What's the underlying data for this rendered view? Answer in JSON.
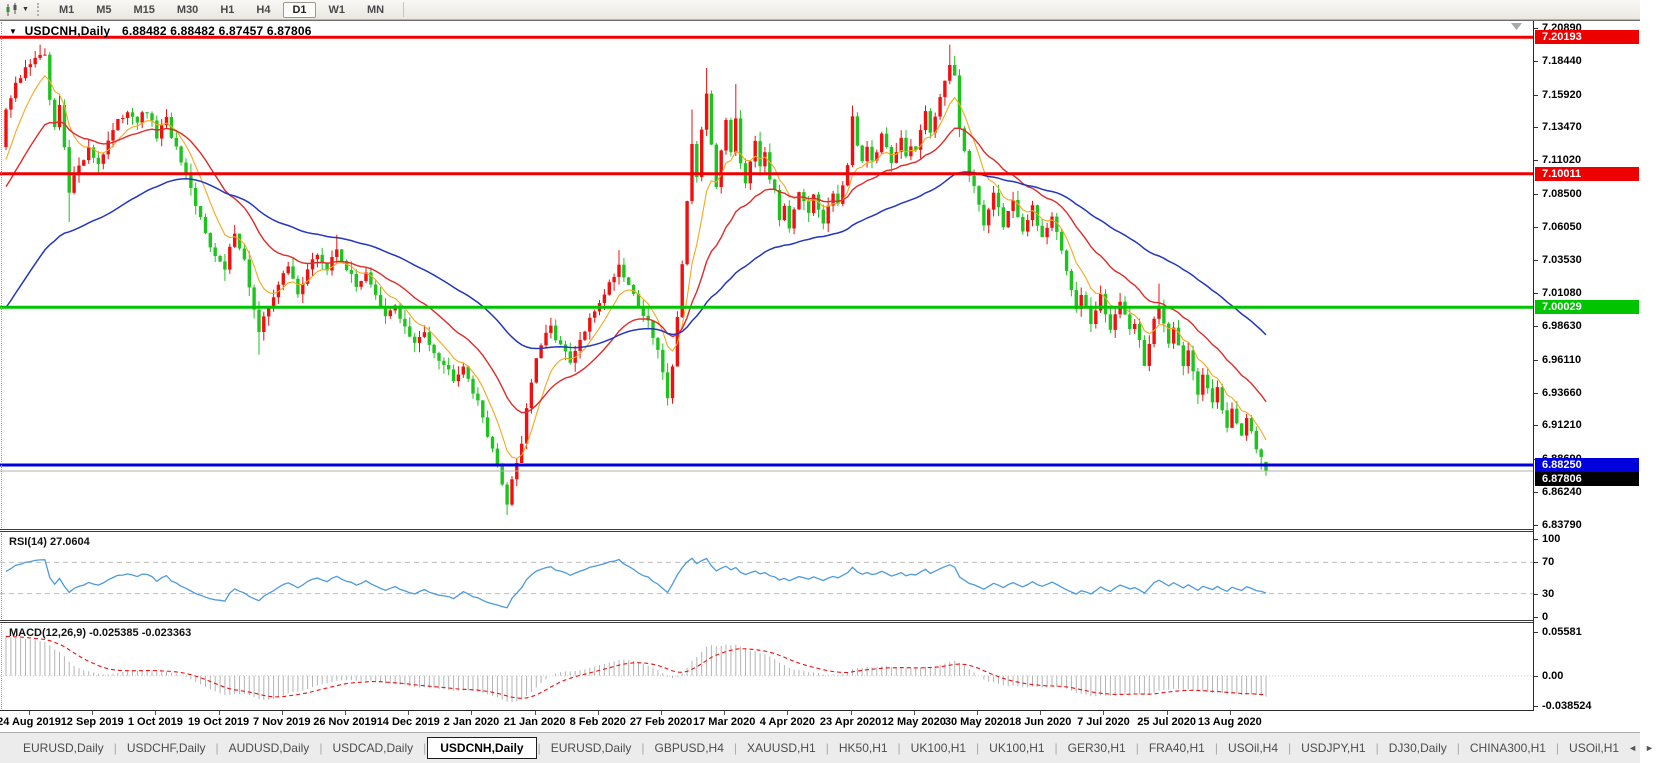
{
  "toolbar": {
    "chart_icon": "candlestick-chart-icon",
    "dropdown_icon": "chevron-down-icon",
    "timeframes": [
      "M1",
      "M5",
      "M15",
      "M30",
      "H1",
      "H4",
      "D1",
      "W1",
      "MN"
    ],
    "active_timeframe": "D1"
  },
  "legend": {
    "collapse_icon": "▼",
    "symbol": "USDCNH,Daily",
    "ohlc": "6.88482 6.88482 6.87457 6.87806"
  },
  "rsi_panel": {
    "label": "RSI(14)",
    "value": "27.0604"
  },
  "macd_panel": {
    "label": "MACD(12,26,9)",
    "value": "-0.025385 -0.023363"
  },
  "axes": {
    "price_labels": [
      "7.20890",
      "7.18440",
      "7.15920",
      "7.13470",
      "7.11020",
      "7.08500",
      "7.06050",
      "7.03530",
      "7.01080",
      "6.98630",
      "6.96110",
      "6.93660",
      "6.91210",
      "6.88690",
      "6.86240",
      "6.83790"
    ],
    "rsi_labels": [
      "100",
      "70",
      "30",
      "0"
    ],
    "macd_labels": [
      "0.05581",
      "0.00",
      "-0.038524"
    ],
    "dates": [
      "24 Aug 2019",
      "12 Sep 2019",
      "1 Oct 2019",
      "19 Oct 2019",
      "7 Nov 2019",
      "26 Nov 2019",
      "14 Dec 2019",
      "2 Jan 2020",
      "21 Jan 2020",
      "8 Feb 2020",
      "27 Feb 2020",
      "17 Mar 2020",
      "4 Apr 2020",
      "23 Apr 2020",
      "12 May 2020",
      "30 May 2020",
      "18 Jun 2020",
      "7 Jul 2020",
      "25 Jul 2020",
      "13 Aug 2020"
    ]
  },
  "price_tags": [
    {
      "label": "7.20193",
      "price": 7.20193,
      "bg": "#ee0000",
      "fg": "#ffffff"
    },
    {
      "label": "7.10011",
      "price": 7.10011,
      "bg": "#ee0000",
      "fg": "#ffffff"
    },
    {
      "label": "7.00029",
      "price": 7.00029,
      "bg": "#00c400",
      "fg": "#ffffff"
    },
    {
      "label": "6.88250",
      "price": 6.8825,
      "bg": "#0000dd",
      "fg": "#ffffff"
    },
    {
      "label": "6.87806",
      "price": 6.87806,
      "bg": "#000000",
      "fg": "#ffffff"
    }
  ],
  "tabs": {
    "items": [
      {
        "label": "EURUSD,Daily",
        "active": false
      },
      {
        "label": "USDCHF,Daily",
        "active": false
      },
      {
        "label": "AUDUSD,Daily",
        "active": false
      },
      {
        "label": "USDCAD,Daily",
        "active": false
      },
      {
        "label": "USDCNH,Daily",
        "active": true
      },
      {
        "label": "EURUSD,Daily",
        "active": false
      },
      {
        "label": "GBPUSD,H4",
        "active": false
      },
      {
        "label": "XAUUSD,H1",
        "active": false
      },
      {
        "label": "HK50,H1",
        "active": false
      },
      {
        "label": "UK100,H1",
        "active": false
      },
      {
        "label": "UK100,H1",
        "active": false
      },
      {
        "label": "GER30,H1",
        "active": false
      },
      {
        "label": "FRA40,H1",
        "active": false
      },
      {
        "label": "USOil,H4",
        "active": false
      },
      {
        "label": "USDJPY,H1",
        "active": false
      },
      {
        "label": "DJ30,Daily",
        "active": false
      },
      {
        "label": "CHINA300,H1",
        "active": false
      },
      {
        "label": "USOil,H1",
        "active": false
      }
    ],
    "scroll_left_icon": "◄",
    "scroll_right_icon": "►"
  },
  "colors": {
    "bull_candle": "#f01010",
    "bear_candle": "#1ec41e",
    "bull_stroke": "#cc0000",
    "bear_stroke": "#0da00d",
    "ma_fast": "#f5a81f",
    "ma_mid": "#e02b2b",
    "ma_slow": "#2336c0",
    "rsi_line": "#4e9ade",
    "macd_hist": "#b4b4b4",
    "macd_signal": "#ee1111",
    "level_dash": "#bdbdbd",
    "current_price_line": "#b0b0b0"
  },
  "chart_data": {
    "type": "candlestick",
    "symbol": "USDCNH",
    "timeframe": "Daily",
    "ohlc_display": {
      "open": "6.88482",
      "high": "6.88482",
      "low": "6.87457",
      "close": "6.87806"
    },
    "price_axis_range": [
      6.8379,
      7.2089
    ],
    "candle_count": 260,
    "first_open": 7.12,
    "seed": 987654321,
    "wiggle": 0.006,
    "wick": 0.007,
    "close_anchors": [
      [
        0,
        7.148
      ],
      [
        2,
        7.165
      ],
      [
        4,
        7.178
      ],
      [
        6,
        7.188
      ],
      [
        8,
        7.186
      ],
      [
        9,
        7.155
      ],
      [
        10,
        7.132
      ],
      [
        11,
        7.15
      ],
      [
        12,
        7.118
      ],
      [
        13,
        7.085
      ],
      [
        15,
        7.108
      ],
      [
        17,
        7.118
      ],
      [
        19,
        7.108
      ],
      [
        21,
        7.125
      ],
      [
        23,
        7.138
      ],
      [
        25,
        7.148
      ],
      [
        27,
        7.14
      ],
      [
        29,
        7.146
      ],
      [
        31,
        7.128
      ],
      [
        33,
        7.14
      ],
      [
        35,
        7.118
      ],
      [
        37,
        7.098
      ],
      [
        39,
        7.075
      ],
      [
        41,
        7.058
      ],
      [
        43,
        7.038
      ],
      [
        45,
        7.028
      ],
      [
        47,
        7.058
      ],
      [
        49,
        7.035
      ],
      [
        51,
        6.998
      ],
      [
        52,
        6.98
      ],
      [
        54,
        7.002
      ],
      [
        56,
        7.018
      ],
      [
        58,
        7.03
      ],
      [
        60,
        7.012
      ],
      [
        62,
        7.028
      ],
      [
        64,
        7.04
      ],
      [
        66,
        7.028
      ],
      [
        68,
        7.044
      ],
      [
        70,
        7.03
      ],
      [
        72,
        7.015
      ],
      [
        74,
        7.028
      ],
      [
        76,
        7.008
      ],
      [
        78,
        6.992
      ],
      [
        80,
        7.002
      ],
      [
        82,
        6.985
      ],
      [
        84,
        6.972
      ],
      [
        86,
        6.982
      ],
      [
        88,
        6.968
      ],
      [
        90,
        6.958
      ],
      [
        92,
        6.948
      ],
      [
        94,
        6.958
      ],
      [
        96,
        6.938
      ],
      [
        98,
        6.918
      ],
      [
        100,
        6.895
      ],
      [
        102,
        6.868
      ],
      [
        103,
        6.855
      ],
      [
        104,
        6.872
      ],
      [
        105,
        6.885
      ],
      [
        106,
        6.9
      ],
      [
        107,
        6.925
      ],
      [
        108,
        6.945
      ],
      [
        109,
        6.96
      ],
      [
        110,
        6.972
      ],
      [
        112,
        6.985
      ],
      [
        114,
        6.972
      ],
      [
        116,
        6.958
      ],
      [
        118,
        6.975
      ],
      [
        120,
        6.99
      ],
      [
        122,
        7.005
      ],
      [
        124,
        7.018
      ],
      [
        126,
        7.032
      ],
      [
        128,
        7.018
      ],
      [
        130,
        7.002
      ],
      [
        132,
        6.988
      ],
      [
        134,
        6.968
      ],
      [
        135,
        6.95
      ],
      [
        136,
        6.935
      ],
      [
        137,
        6.958
      ],
      [
        138,
        6.992
      ],
      [
        139,
        7.035
      ],
      [
        140,
        7.08
      ],
      [
        141,
        7.122
      ],
      [
        142,
        7.095
      ],
      [
        143,
        7.13
      ],
      [
        144,
        7.16
      ],
      [
        145,
        7.122
      ],
      [
        146,
        7.092
      ],
      [
        147,
        7.115
      ],
      [
        148,
        7.14
      ],
      [
        149,
        7.118
      ],
      [
        150,
        7.142
      ],
      [
        151,
        7.11
      ],
      [
        152,
        7.094
      ],
      [
        153,
        7.112
      ],
      [
        154,
        7.126
      ],
      [
        155,
        7.108
      ],
      [
        156,
        7.118
      ],
      [
        157,
        7.098
      ],
      [
        158,
        7.085
      ],
      [
        159,
        7.066
      ],
      [
        160,
        7.078
      ],
      [
        161,
        7.062
      ],
      [
        162,
        7.075
      ],
      [
        163,
        7.088
      ],
      [
        164,
        7.078
      ],
      [
        165,
        7.068
      ],
      [
        166,
        7.082
      ],
      [
        167,
        7.072
      ],
      [
        168,
        7.062
      ],
      [
        169,
        7.075
      ],
      [
        170,
        7.085
      ],
      [
        171,
        7.078
      ],
      [
        172,
        7.092
      ],
      [
        173,
        7.105
      ],
      [
        174,
        7.14
      ],
      [
        175,
        7.122
      ],
      [
        176,
        7.112
      ],
      [
        177,
        7.12
      ],
      [
        178,
        7.108
      ],
      [
        179,
        7.118
      ],
      [
        180,
        7.13
      ],
      [
        181,
        7.12
      ],
      [
        182,
        7.108
      ],
      [
        183,
        7.118
      ],
      [
        184,
        7.128
      ],
      [
        185,
        7.112
      ],
      [
        186,
        7.122
      ],
      [
        187,
        7.118
      ],
      [
        188,
        7.132
      ],
      [
        189,
        7.145
      ],
      [
        190,
        7.128
      ],
      [
        191,
        7.142
      ],
      [
        192,
        7.158
      ],
      [
        193,
        7.172
      ],
      [
        194,
        7.182
      ],
      [
        195,
        7.175
      ],
      [
        196,
        7.135
      ],
      [
        197,
        7.118
      ],
      [
        198,
        7.098
      ],
      [
        199,
        7.088
      ],
      [
        200,
        7.078
      ],
      [
        201,
        7.062
      ],
      [
        202,
        7.075
      ],
      [
        203,
        7.088
      ],
      [
        204,
        7.075
      ],
      [
        205,
        7.06
      ],
      [
        206,
        7.072
      ],
      [
        207,
        7.082
      ],
      [
        208,
        7.068
      ],
      [
        209,
        7.055
      ],
      [
        210,
        7.065
      ],
      [
        211,
        7.075
      ],
      [
        212,
        7.062
      ],
      [
        213,
        7.05
      ],
      [
        214,
        7.06
      ],
      [
        215,
        7.068
      ],
      [
        216,
        7.055
      ],
      [
        217,
        7.042
      ],
      [
        218,
        7.03
      ],
      [
        219,
        7.015
      ],
      [
        220,
        7.002
      ],
      [
        221,
        7.012
      ],
      [
        222,
        7.0
      ],
      [
        223,
        6.988
      ],
      [
        224,
        6.998
      ],
      [
        225,
        7.008
      ],
      [
        226,
        6.996
      ],
      [
        227,
        6.985
      ],
      [
        228,
        6.995
      ],
      [
        229,
        7.005
      ],
      [
        230,
        6.992
      ],
      [
        231,
        6.982
      ],
      [
        232,
        6.99
      ],
      [
        233,
        6.975
      ],
      [
        234,
        6.958
      ],
      [
        235,
        6.972
      ],
      [
        236,
        6.992
      ],
      [
        237,
        7.004
      ],
      [
        238,
        6.99
      ],
      [
        239,
        6.975
      ],
      [
        240,
        6.985
      ],
      [
        241,
        6.97
      ],
      [
        242,
        6.955
      ],
      [
        243,
        6.968
      ],
      [
        244,
        6.952
      ],
      [
        245,
        6.938
      ],
      [
        246,
        6.952
      ],
      [
        247,
        6.942
      ],
      [
        248,
        6.928
      ],
      [
        249,
        6.94
      ],
      [
        250,
        6.925
      ],
      [
        251,
        6.912
      ],
      [
        252,
        6.926
      ],
      [
        253,
        6.916
      ],
      [
        254,
        6.904
      ],
      [
        255,
        6.915
      ],
      [
        256,
        6.905
      ],
      [
        257,
        6.896
      ],
      [
        258,
        6.888
      ],
      [
        259,
        6.87806
      ]
    ],
    "overrides": [
      {
        "i": 7,
        "high": 7.1965
      },
      {
        "i": 13,
        "low": 7.064
      },
      {
        "i": 45,
        "low": 7.02
      },
      {
        "i": 52,
        "low": 6.965
      },
      {
        "i": 68,
        "high": 7.0545
      },
      {
        "i": 103,
        "low": 6.8452
      },
      {
        "i": 126,
        "high": 7.043
      },
      {
        "i": 136,
        "low": 6.927
      },
      {
        "i": 141,
        "high": 7.148
      },
      {
        "i": 144,
        "high": 7.179
      },
      {
        "i": 150,
        "high": 7.167
      },
      {
        "i": 174,
        "high": 7.151
      },
      {
        "i": 194,
        "high": 7.1965
      },
      {
        "i": 195,
        "high": 7.188
      },
      {
        "i": 237,
        "high": 7.018
      },
      {
        "i": 258,
        "low": 6.879
      },
      {
        "i": 259,
        "open": 6.88482,
        "high": 6.88482,
        "low": 6.87457,
        "close": 6.87806
      }
    ],
    "moving_averages": [
      {
        "name": "fast",
        "period": 8,
        "seed": 7.1,
        "color_key": "ma_fast",
        "width": 1.1
      },
      {
        "name": "mid",
        "period": 22,
        "seed": 7.085,
        "color_key": "ma_mid",
        "width": 1.4
      },
      {
        "name": "slow",
        "period": 58,
        "seed": 6.995,
        "color_key": "ma_slow",
        "width": 1.5
      }
    ],
    "hlines": [
      {
        "price": 7.20193,
        "color": "#ee0000",
        "width": 3
      },
      {
        "price": 7.10011,
        "color": "#ee0000",
        "width": 3
      },
      {
        "price": 7.00029,
        "color": "#00c400",
        "width": 3
      },
      {
        "price": 6.8825,
        "color": "#0000dd",
        "width": 3
      }
    ],
    "current_price": 6.87806,
    "rsi": {
      "period": 14,
      "levels": [
        70,
        30
      ],
      "seed_gain": 0.0042,
      "seed_loss": 0.003,
      "last_value": 27.0604
    },
    "macd": {
      "fast": 12,
      "slow": 26,
      "signal": 9,
      "seed_fast": 7.125,
      "seed_slow": 7.072,
      "seed_signal": 0.05,
      "axis_max": 0.05581,
      "axis_min": -0.038524,
      "last_main": -0.025385,
      "last_signal": -0.023363
    }
  }
}
